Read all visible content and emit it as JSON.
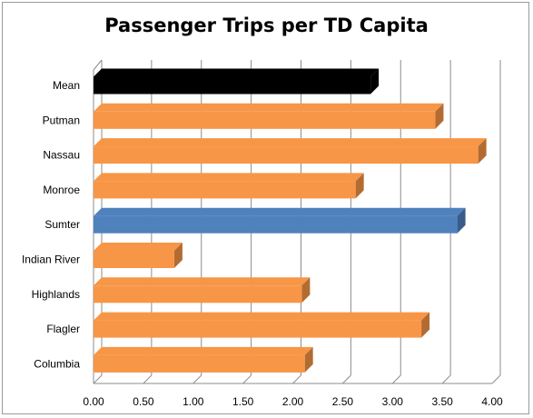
{
  "chart_data": {
    "type": "bar",
    "orientation": "horizontal",
    "title": "Passenger Trips per TD Capita",
    "xlabel": "",
    "ylabel": "",
    "categories": [
      "Mean",
      "Putman",
      "Nassau",
      "Monroe",
      "Sumter",
      "Indian River",
      "Highlands",
      "Flagler",
      "Columbia"
    ],
    "values": [
      2.78,
      3.43,
      3.86,
      2.63,
      3.65,
      0.81,
      2.09,
      3.29,
      2.12
    ],
    "bar_colors": [
      "#000000",
      "#f79646",
      "#f79646",
      "#f79646",
      "#4f81bd",
      "#f79646",
      "#f79646",
      "#f79646",
      "#f79646"
    ],
    "x_ticks": [
      "0.00",
      "0.50",
      "1.00",
      "1.50",
      "2.00",
      "2.50",
      "3.00",
      "3.50",
      "4.00"
    ],
    "xlim": [
      0,
      4
    ],
    "grid": true,
    "legend": "none",
    "style": "3d"
  }
}
